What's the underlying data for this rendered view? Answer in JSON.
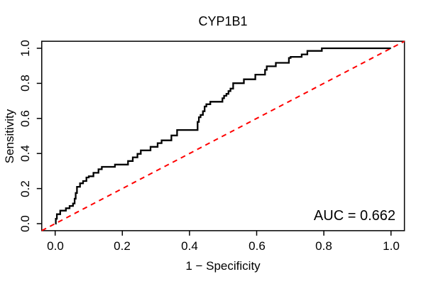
{
  "chart_data": {
    "type": "line",
    "subtype": "roc-step-curve",
    "title": "CYP1B1",
    "xlabel": "1 − Specificity",
    "ylabel": "Sensitivity",
    "x_ticks": [
      0.0,
      0.2,
      0.4,
      0.6,
      0.8,
      1.0
    ],
    "x_tick_labels": [
      "0.0",
      "0.2",
      "0.4",
      "0.6",
      "0.8",
      "1.0"
    ],
    "y_ticks": [
      0.0,
      0.2,
      0.4,
      0.6,
      0.8,
      1.0
    ],
    "y_tick_labels": [
      "0.0",
      "0.2",
      "0.4",
      "0.6",
      "0.8",
      "1.0"
    ],
    "xlim": [
      -0.04,
      1.04
    ],
    "ylim": [
      -0.04,
      1.04
    ],
    "grid": false,
    "legend": "none",
    "background_color": "#ffffff",
    "box_color": "#000000",
    "annotation": {
      "auc_label": "AUC = 0.662",
      "auc_value": 0.662,
      "position": "bottom-right"
    },
    "diagonal": {
      "name": "chance-line",
      "color": "#ff0000",
      "style": "dashed",
      "line_width": 2,
      "from": [
        0,
        0
      ],
      "to": [
        1,
        1
      ]
    },
    "roc_curve": {
      "name": "CYP1B1-roc",
      "color": "#000000",
      "line_width": 2.3,
      "points": [
        [
          0,
          0
        ],
        [
          0.002,
          0
        ],
        [
          0.002,
          0.028
        ],
        [
          0.005,
          0.028
        ],
        [
          0.005,
          0.054
        ],
        [
          0.015,
          0.054
        ],
        [
          0.015,
          0.074
        ],
        [
          0.032,
          0.074
        ],
        [
          0.032,
          0.088
        ],
        [
          0.043,
          0.088
        ],
        [
          0.043,
          0.101
        ],
        [
          0.053,
          0.101
        ],
        [
          0.053,
          0.115
        ],
        [
          0.058,
          0.115
        ],
        [
          0.058,
          0.142
        ],
        [
          0.061,
          0.142
        ],
        [
          0.061,
          0.175
        ],
        [
          0.065,
          0.175
        ],
        [
          0.065,
          0.21
        ],
        [
          0.074,
          0.21
        ],
        [
          0.074,
          0.23
        ],
        [
          0.083,
          0.23
        ],
        [
          0.083,
          0.243
        ],
        [
          0.093,
          0.243
        ],
        [
          0.093,
          0.263
        ],
        [
          0.1,
          0.263
        ],
        [
          0.1,
          0.27
        ],
        [
          0.114,
          0.27
        ],
        [
          0.114,
          0.29
        ],
        [
          0.129,
          0.29
        ],
        [
          0.129,
          0.31
        ],
        [
          0.139,
          0.31
        ],
        [
          0.139,
          0.324
        ],
        [
          0.178,
          0.324
        ],
        [
          0.178,
          0.337
        ],
        [
          0.217,
          0.337
        ],
        [
          0.217,
          0.357
        ],
        [
          0.231,
          0.357
        ],
        [
          0.231,
          0.378
        ],
        [
          0.245,
          0.378
        ],
        [
          0.245,
          0.398
        ],
        [
          0.255,
          0.398
        ],
        [
          0.255,
          0.418
        ],
        [
          0.284,
          0.418
        ],
        [
          0.284,
          0.438
        ],
        [
          0.305,
          0.438
        ],
        [
          0.305,
          0.459
        ],
        [
          0.317,
          0.459
        ],
        [
          0.317,
          0.475
        ],
        [
          0.346,
          0.475
        ],
        [
          0.346,
          0.503
        ],
        [
          0.363,
          0.503
        ],
        [
          0.363,
          0.534
        ],
        [
          0.424,
          0.534
        ],
        [
          0.424,
          0.58
        ],
        [
          0.428,
          0.58
        ],
        [
          0.428,
          0.607
        ],
        [
          0.433,
          0.607
        ],
        [
          0.433,
          0.62
        ],
        [
          0.44,
          0.62
        ],
        [
          0.44,
          0.641
        ],
        [
          0.445,
          0.641
        ],
        [
          0.445,
          0.668
        ],
        [
          0.45,
          0.668
        ],
        [
          0.45,
          0.681
        ],
        [
          0.462,
          0.681
        ],
        [
          0.462,
          0.695
        ],
        [
          0.498,
          0.695
        ],
        [
          0.498,
          0.715
        ],
        [
          0.503,
          0.715
        ],
        [
          0.503,
          0.729
        ],
        [
          0.51,
          0.729
        ],
        [
          0.51,
          0.74
        ],
        [
          0.516,
          0.74
        ],
        [
          0.516,
          0.756
        ],
        [
          0.522,
          0.756
        ],
        [
          0.522,
          0.77
        ],
        [
          0.53,
          0.77
        ],
        [
          0.53,
          0.801
        ],
        [
          0.562,
          0.801
        ],
        [
          0.562,
          0.823
        ],
        [
          0.596,
          0.823
        ],
        [
          0.596,
          0.85
        ],
        [
          0.625,
          0.85
        ],
        [
          0.625,
          0.877
        ],
        [
          0.63,
          0.877
        ],
        [
          0.63,
          0.897
        ],
        [
          0.657,
          0.897
        ],
        [
          0.657,
          0.917
        ],
        [
          0.696,
          0.917
        ],
        [
          0.696,
          0.945
        ],
        [
          0.701,
          0.945
        ],
        [
          0.701,
          0.951
        ],
        [
          0.734,
          0.951
        ],
        [
          0.734,
          0.965
        ],
        [
          0.751,
          0.965
        ],
        [
          0.751,
          0.985
        ],
        [
          0.794,
          0.985
        ],
        [
          0.794,
          1
        ],
        [
          1,
          1
        ]
      ]
    }
  }
}
